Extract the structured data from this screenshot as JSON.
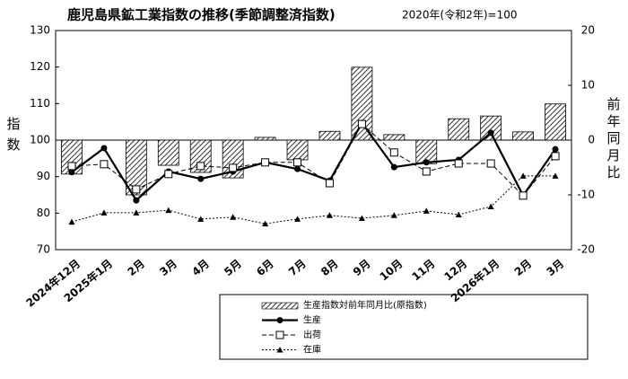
{
  "chart_data": {
    "type": "bar_line",
    "title": "鹿児島県鉱工業指数の推移(季節調整済指数)",
    "subtitle": "2020年(令和2年)=100",
    "y_label": "指数",
    "y2_label": "前年同月比",
    "categories": [
      "2024年12月",
      "2025年1月",
      "2月",
      "3月",
      "4月",
      "5月",
      "6月",
      "7月",
      "8月",
      "9月",
      "10月",
      "11月",
      "12月",
      "2026年1月",
      "2月",
      "3月"
    ],
    "ylim": [
      70,
      130
    ],
    "yticks": [
      70,
      80,
      90,
      100,
      110,
      120,
      130
    ],
    "y2lim": [
      -20,
      20
    ],
    "y2ticks": [
      -20,
      -10,
      0,
      10,
      20
    ],
    "series": [
      {
        "name": "生産指数対前年同月比(原指数)",
        "type": "bar",
        "axis": "y2",
        "color": "#000000",
        "values": [
          -6.2,
          0,
          -10,
          -4.6,
          -5.9,
          -6.9,
          0.5,
          -3.6,
          1.6,
          13.3,
          1.0,
          -4.3,
          3.9,
          4.4,
          1.5,
          6.6
        ]
      },
      {
        "name": "生産",
        "type": "line",
        "style": "solid",
        "marker": "circle",
        "color": "#000000",
        "values": [
          91.2,
          97.8,
          83.5,
          91.4,
          89.4,
          91.4,
          93.9,
          92.1,
          88.9,
          104.7,
          92.6,
          93.9,
          94.6,
          102,
          84.8,
          97.5
        ]
      },
      {
        "name": "出荷",
        "type": "line",
        "style": "dashed",
        "marker": "square",
        "color": "#000000",
        "values": [
          92.9,
          93.4,
          86.5,
          90.7,
          92.9,
          92.4,
          93.9,
          93.9,
          88.2,
          104.4,
          96.6,
          91.4,
          93.6,
          93.6,
          84.8,
          95.6
        ]
      },
      {
        "name": "在庫",
        "type": "line",
        "style": "dotted",
        "marker": "triangle",
        "color": "#000000",
        "values": [
          77.6,
          80.1,
          80.1,
          80.8,
          78.4,
          78.9,
          77.1,
          78.4,
          79.4,
          78.6,
          79.4,
          80.6,
          79.6,
          81.8,
          90.2,
          90.2
        ]
      }
    ]
  }
}
